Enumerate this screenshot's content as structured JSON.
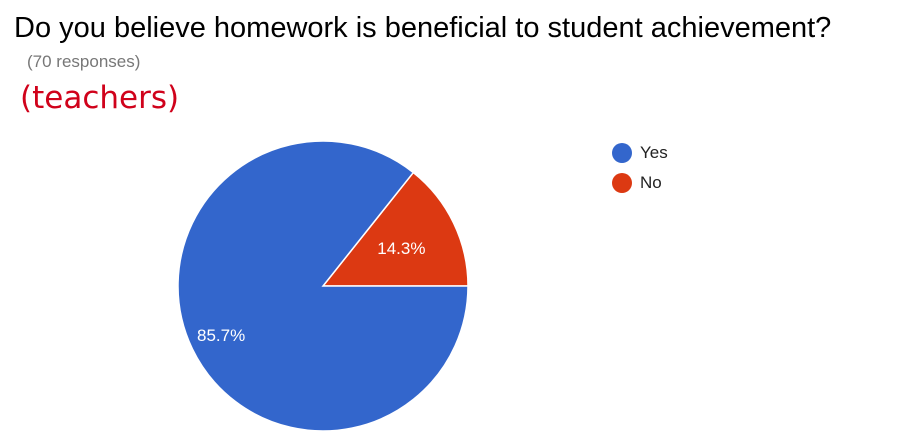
{
  "header": {
    "title": "Do you believe homework is beneficial to student achievement?",
    "responses": "(70 responses)",
    "annotation": "(teachers)",
    "annotation_color": "#d0021b"
  },
  "chart_data": {
    "type": "pie",
    "title": "Do you believe homework is beneficial to student achievement?",
    "slices": [
      {
        "label": "Yes",
        "value": 85.7,
        "display": "85.7%",
        "color": "#3366cc"
      },
      {
        "label": "No",
        "value": 14.3,
        "display": "14.3%",
        "color": "#dc3912"
      }
    ],
    "legend_position": "right"
  }
}
